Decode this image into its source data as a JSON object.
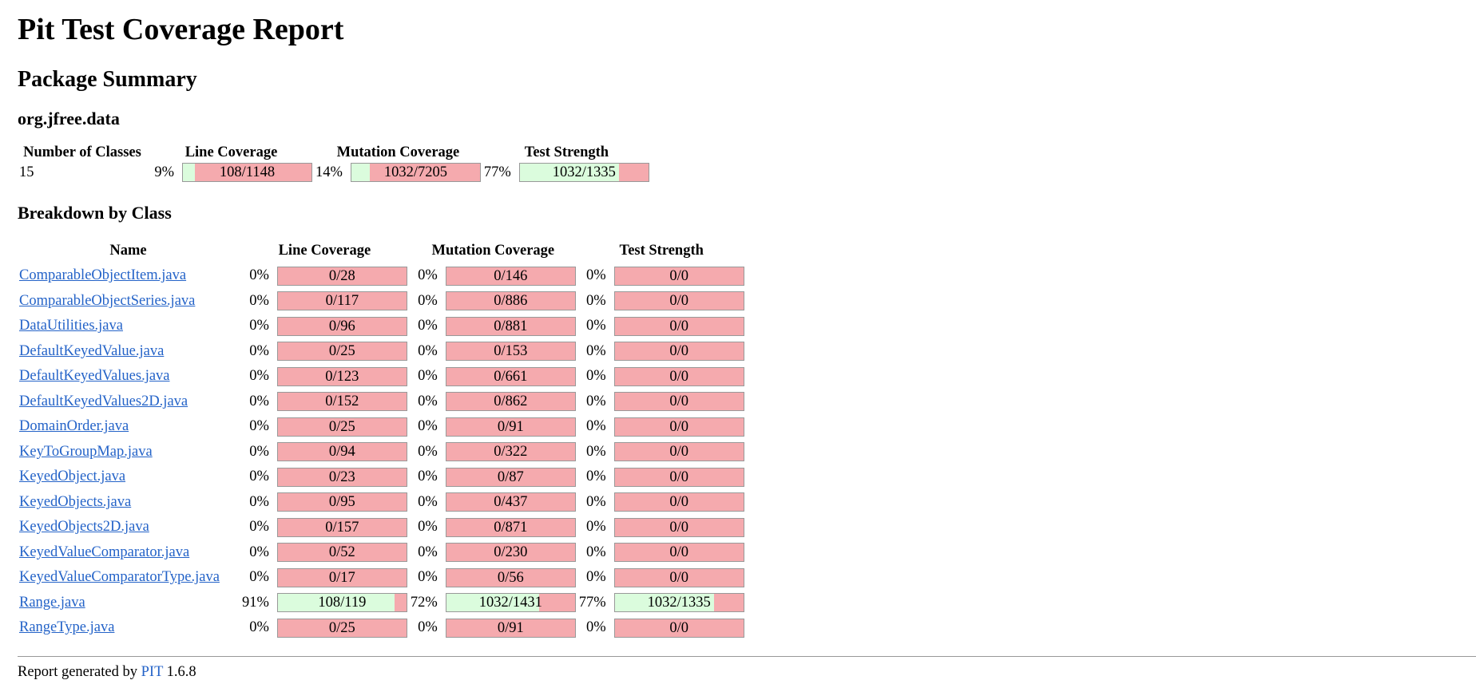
{
  "title": "Pit Test Coverage Report",
  "section_title": "Package Summary",
  "package_name": "org.jfree.data",
  "summary": {
    "headers": {
      "classes": "Number of Classes",
      "line": "Line Coverage",
      "mutation": "Mutation Coverage",
      "strength": "Test Strength"
    },
    "num_classes": "15",
    "line": {
      "percent": "9%",
      "ratio": "108/1148",
      "fraction": 0.094
    },
    "mutation": {
      "percent": "14%",
      "ratio": "1032/7205",
      "fraction": 0.143
    },
    "strength": {
      "percent": "77%",
      "ratio": "1032/1335",
      "fraction": 0.773
    }
  },
  "breakdown_title": "Breakdown by Class",
  "breakdown": {
    "headers": {
      "name": "Name",
      "line": "Line Coverage",
      "mutation": "Mutation Coverage",
      "strength": "Test Strength"
    },
    "rows": [
      {
        "name": "ComparableObjectItem.java",
        "line_pct": "0%",
        "line_ratio": "0/28",
        "line_frac": 0,
        "mut_pct": "0%",
        "mut_ratio": "0/146",
        "mut_frac": 0,
        "str_pct": "0%",
        "str_ratio": "0/0",
        "str_frac": 0
      },
      {
        "name": "ComparableObjectSeries.java",
        "line_pct": "0%",
        "line_ratio": "0/117",
        "line_frac": 0,
        "mut_pct": "0%",
        "mut_ratio": "0/886",
        "mut_frac": 0,
        "str_pct": "0%",
        "str_ratio": "0/0",
        "str_frac": 0
      },
      {
        "name": "DataUtilities.java",
        "line_pct": "0%",
        "line_ratio": "0/96",
        "line_frac": 0,
        "mut_pct": "0%",
        "mut_ratio": "0/881",
        "mut_frac": 0,
        "str_pct": "0%",
        "str_ratio": "0/0",
        "str_frac": 0
      },
      {
        "name": "DefaultKeyedValue.java",
        "line_pct": "0%",
        "line_ratio": "0/25",
        "line_frac": 0,
        "mut_pct": "0%",
        "mut_ratio": "0/153",
        "mut_frac": 0,
        "str_pct": "0%",
        "str_ratio": "0/0",
        "str_frac": 0
      },
      {
        "name": "DefaultKeyedValues.java",
        "line_pct": "0%",
        "line_ratio": "0/123",
        "line_frac": 0,
        "mut_pct": "0%",
        "mut_ratio": "0/661",
        "mut_frac": 0,
        "str_pct": "0%",
        "str_ratio": "0/0",
        "str_frac": 0
      },
      {
        "name": "DefaultKeyedValues2D.java",
        "line_pct": "0%",
        "line_ratio": "0/152",
        "line_frac": 0,
        "mut_pct": "0%",
        "mut_ratio": "0/862",
        "mut_frac": 0,
        "str_pct": "0%",
        "str_ratio": "0/0",
        "str_frac": 0
      },
      {
        "name": "DomainOrder.java",
        "line_pct": "0%",
        "line_ratio": "0/25",
        "line_frac": 0,
        "mut_pct": "0%",
        "mut_ratio": "0/91",
        "mut_frac": 0,
        "str_pct": "0%",
        "str_ratio": "0/0",
        "str_frac": 0
      },
      {
        "name": "KeyToGroupMap.java",
        "line_pct": "0%",
        "line_ratio": "0/94",
        "line_frac": 0,
        "mut_pct": "0%",
        "mut_ratio": "0/322",
        "mut_frac": 0,
        "str_pct": "0%",
        "str_ratio": "0/0",
        "str_frac": 0
      },
      {
        "name": "KeyedObject.java",
        "line_pct": "0%",
        "line_ratio": "0/23",
        "line_frac": 0,
        "mut_pct": "0%",
        "mut_ratio": "0/87",
        "mut_frac": 0,
        "str_pct": "0%",
        "str_ratio": "0/0",
        "str_frac": 0
      },
      {
        "name": "KeyedObjects.java",
        "line_pct": "0%",
        "line_ratio": "0/95",
        "line_frac": 0,
        "mut_pct": "0%",
        "mut_ratio": "0/437",
        "mut_frac": 0,
        "str_pct": "0%",
        "str_ratio": "0/0",
        "str_frac": 0
      },
      {
        "name": "KeyedObjects2D.java",
        "line_pct": "0%",
        "line_ratio": "0/157",
        "line_frac": 0,
        "mut_pct": "0%",
        "mut_ratio": "0/871",
        "mut_frac": 0,
        "str_pct": "0%",
        "str_ratio": "0/0",
        "str_frac": 0
      },
      {
        "name": "KeyedValueComparator.java",
        "line_pct": "0%",
        "line_ratio": "0/52",
        "line_frac": 0,
        "mut_pct": "0%",
        "mut_ratio": "0/230",
        "mut_frac": 0,
        "str_pct": "0%",
        "str_ratio": "0/0",
        "str_frac": 0
      },
      {
        "name": "KeyedValueComparatorType.java",
        "line_pct": "0%",
        "line_ratio": "0/17",
        "line_frac": 0,
        "mut_pct": "0%",
        "mut_ratio": "0/56",
        "mut_frac": 0,
        "str_pct": "0%",
        "str_ratio": "0/0",
        "str_frac": 0
      },
      {
        "name": "Range.java",
        "line_pct": "91%",
        "line_ratio": "108/119",
        "line_frac": 0.908,
        "mut_pct": "72%",
        "mut_ratio": "1032/1431",
        "mut_frac": 0.721,
        "str_pct": "77%",
        "str_ratio": "1032/1335",
        "str_frac": 0.773
      },
      {
        "name": "RangeType.java",
        "line_pct": "0%",
        "line_ratio": "0/25",
        "line_frac": 0,
        "mut_pct": "0%",
        "mut_ratio": "0/91",
        "mut_frac": 0,
        "str_pct": "0%",
        "str_ratio": "0/0",
        "str_frac": 0
      }
    ]
  },
  "footer": {
    "prefix": "Report generated by",
    "link": "PIT",
    "version": "1.6.8"
  },
  "colors": {
    "covered": "#dbfcdd",
    "uncovered": "#f5aaae",
    "link": "#2463c8"
  }
}
